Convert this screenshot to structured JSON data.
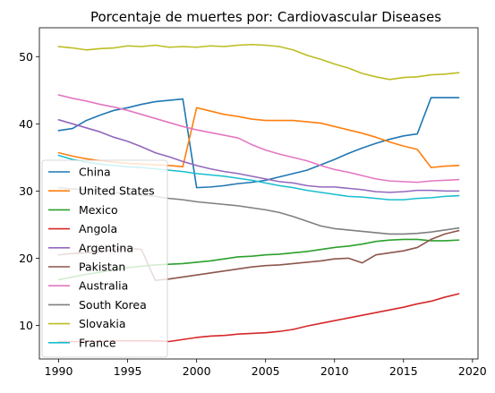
{
  "chart_data": {
    "type": "line",
    "title": "Porcentaje de muertes por: Cardiovascular Diseases",
    "xlabel": "",
    "ylabel": "",
    "xlim": [
      1988.6,
      2020.4
    ],
    "ylim": [
      5.0,
      54.3
    ],
    "xticks": [
      1990,
      1995,
      2000,
      2005,
      2010,
      2015,
      2020
    ],
    "yticks": [
      10,
      20,
      30,
      40,
      50
    ],
    "grid": false,
    "legend_position": "center-left",
    "x": [
      1990,
      1991,
      1992,
      1993,
      1994,
      1995,
      1996,
      1997,
      1998,
      1999,
      2000,
      2001,
      2002,
      2003,
      2004,
      2005,
      2006,
      2007,
      2008,
      2009,
      2010,
      2011,
      2012,
      2013,
      2014,
      2015,
      2016,
      2017,
      2018,
      2019
    ],
    "series": [
      {
        "name": "China",
        "color": "#1f77b4",
        "values": [
          39.0,
          39.3,
          40.5,
          41.3,
          42.0,
          42.4,
          42.9,
          43.3,
          43.5,
          43.7,
          30.5,
          30.6,
          30.8,
          31.1,
          31.3,
          31.6,
          32.1,
          32.6,
          33.1,
          33.9,
          34.7,
          35.6,
          36.4,
          37.1,
          37.7,
          38.2,
          38.5,
          43.9,
          43.9,
          43.9
        ]
      },
      {
        "name": "United States",
        "color": "#ff7f0e",
        "values": [
          35.7,
          35.2,
          34.8,
          34.5,
          34.3,
          34.1,
          34.0,
          33.9,
          33.8,
          33.6,
          42.4,
          41.9,
          41.4,
          41.1,
          40.7,
          40.5,
          40.5,
          40.5,
          40.3,
          40.1,
          39.6,
          39.1,
          38.6,
          38.0,
          37.3,
          36.7,
          36.2,
          33.5,
          33.7,
          33.8
        ]
      },
      {
        "name": "Mexico",
        "color": "#2ca02c",
        "values": [
          16.8,
          17.2,
          17.6,
          17.9,
          18.3,
          18.6,
          18.8,
          19.0,
          19.1,
          19.2,
          19.4,
          19.6,
          19.9,
          20.2,
          20.3,
          20.5,
          20.6,
          20.8,
          21.0,
          21.3,
          21.6,
          21.8,
          22.1,
          22.5,
          22.7,
          22.8,
          22.8,
          22.6,
          22.6,
          22.7
        ]
      },
      {
        "name": "Angola",
        "color": "#d62728",
        "values": [
          7.6,
          7.6,
          7.6,
          7.6,
          7.7,
          7.7,
          7.7,
          7.7,
          7.6,
          7.9,
          8.2,
          8.4,
          8.5,
          8.7,
          8.8,
          8.9,
          9.1,
          9.4,
          9.9,
          10.3,
          10.7,
          11.1,
          11.5,
          11.9,
          12.3,
          12.7,
          13.2,
          13.6,
          14.2,
          14.7
        ]
      },
      {
        "name": "Argentina",
        "color": "#9467bd",
        "values": [
          40.6,
          40.0,
          39.4,
          38.8,
          38.0,
          37.4,
          36.6,
          35.7,
          35.1,
          34.4,
          33.8,
          33.3,
          32.9,
          32.6,
          32.2,
          31.8,
          31.4,
          31.2,
          30.8,
          30.6,
          30.6,
          30.4,
          30.2,
          29.9,
          29.8,
          29.9,
          30.1,
          30.1,
          30.0,
          30.0
        ]
      },
      {
        "name": "Pakistan",
        "color": "#8c564b",
        "values": [
          20.5,
          20.7,
          20.8,
          21.0,
          21.3,
          21.5,
          21.3,
          16.7,
          16.9,
          17.2,
          17.5,
          17.8,
          18.1,
          18.4,
          18.7,
          18.9,
          19.0,
          19.2,
          19.4,
          19.6,
          19.9,
          20.0,
          19.3,
          20.5,
          20.8,
          21.1,
          21.6,
          22.8,
          23.6,
          24.1
        ]
      },
      {
        "name": "Australia",
        "color": "#e377c2",
        "values": [
          44.3,
          43.8,
          43.4,
          42.9,
          42.5,
          42.0,
          41.4,
          40.8,
          40.2,
          39.6,
          39.1,
          38.7,
          38.3,
          37.9,
          36.9,
          36.1,
          35.5,
          35.0,
          34.5,
          33.8,
          33.2,
          32.8,
          32.3,
          31.8,
          31.5,
          31.4,
          31.3,
          31.5,
          31.6,
          31.7
        ]
      },
      {
        "name": "South Korea",
        "color": "#7f7f7f",
        "values": [
          30.5,
          30.3,
          30.2,
          30.0,
          29.8,
          29.6,
          29.4,
          29.2,
          28.9,
          28.7,
          28.4,
          28.2,
          28.0,
          27.8,
          27.5,
          27.2,
          26.8,
          26.2,
          25.5,
          24.8,
          24.4,
          24.2,
          24.0,
          23.8,
          23.6,
          23.6,
          23.7,
          23.9,
          24.2,
          24.5
        ]
      },
      {
        "name": "Slovakia",
        "color": "#bcbd22",
        "values": [
          51.5,
          51.3,
          51.0,
          51.2,
          51.3,
          51.6,
          51.5,
          51.7,
          51.4,
          51.5,
          51.4,
          51.6,
          51.5,
          51.7,
          51.8,
          51.7,
          51.5,
          51.0,
          50.2,
          49.6,
          48.9,
          48.3,
          47.5,
          47.0,
          46.6,
          46.9,
          47.0,
          47.3,
          47.4,
          47.6
        ]
      },
      {
        "name": "France",
        "color": "#17becf",
        "values": [
          35.3,
          34.7,
          34.3,
          34.0,
          33.8,
          33.6,
          33.5,
          33.3,
          33.1,
          32.9,
          32.6,
          32.4,
          32.2,
          31.9,
          31.6,
          31.2,
          30.8,
          30.5,
          30.1,
          29.8,
          29.5,
          29.2,
          29.1,
          28.9,
          28.7,
          28.7,
          28.9,
          29.0,
          29.2,
          29.3
        ]
      }
    ]
  }
}
